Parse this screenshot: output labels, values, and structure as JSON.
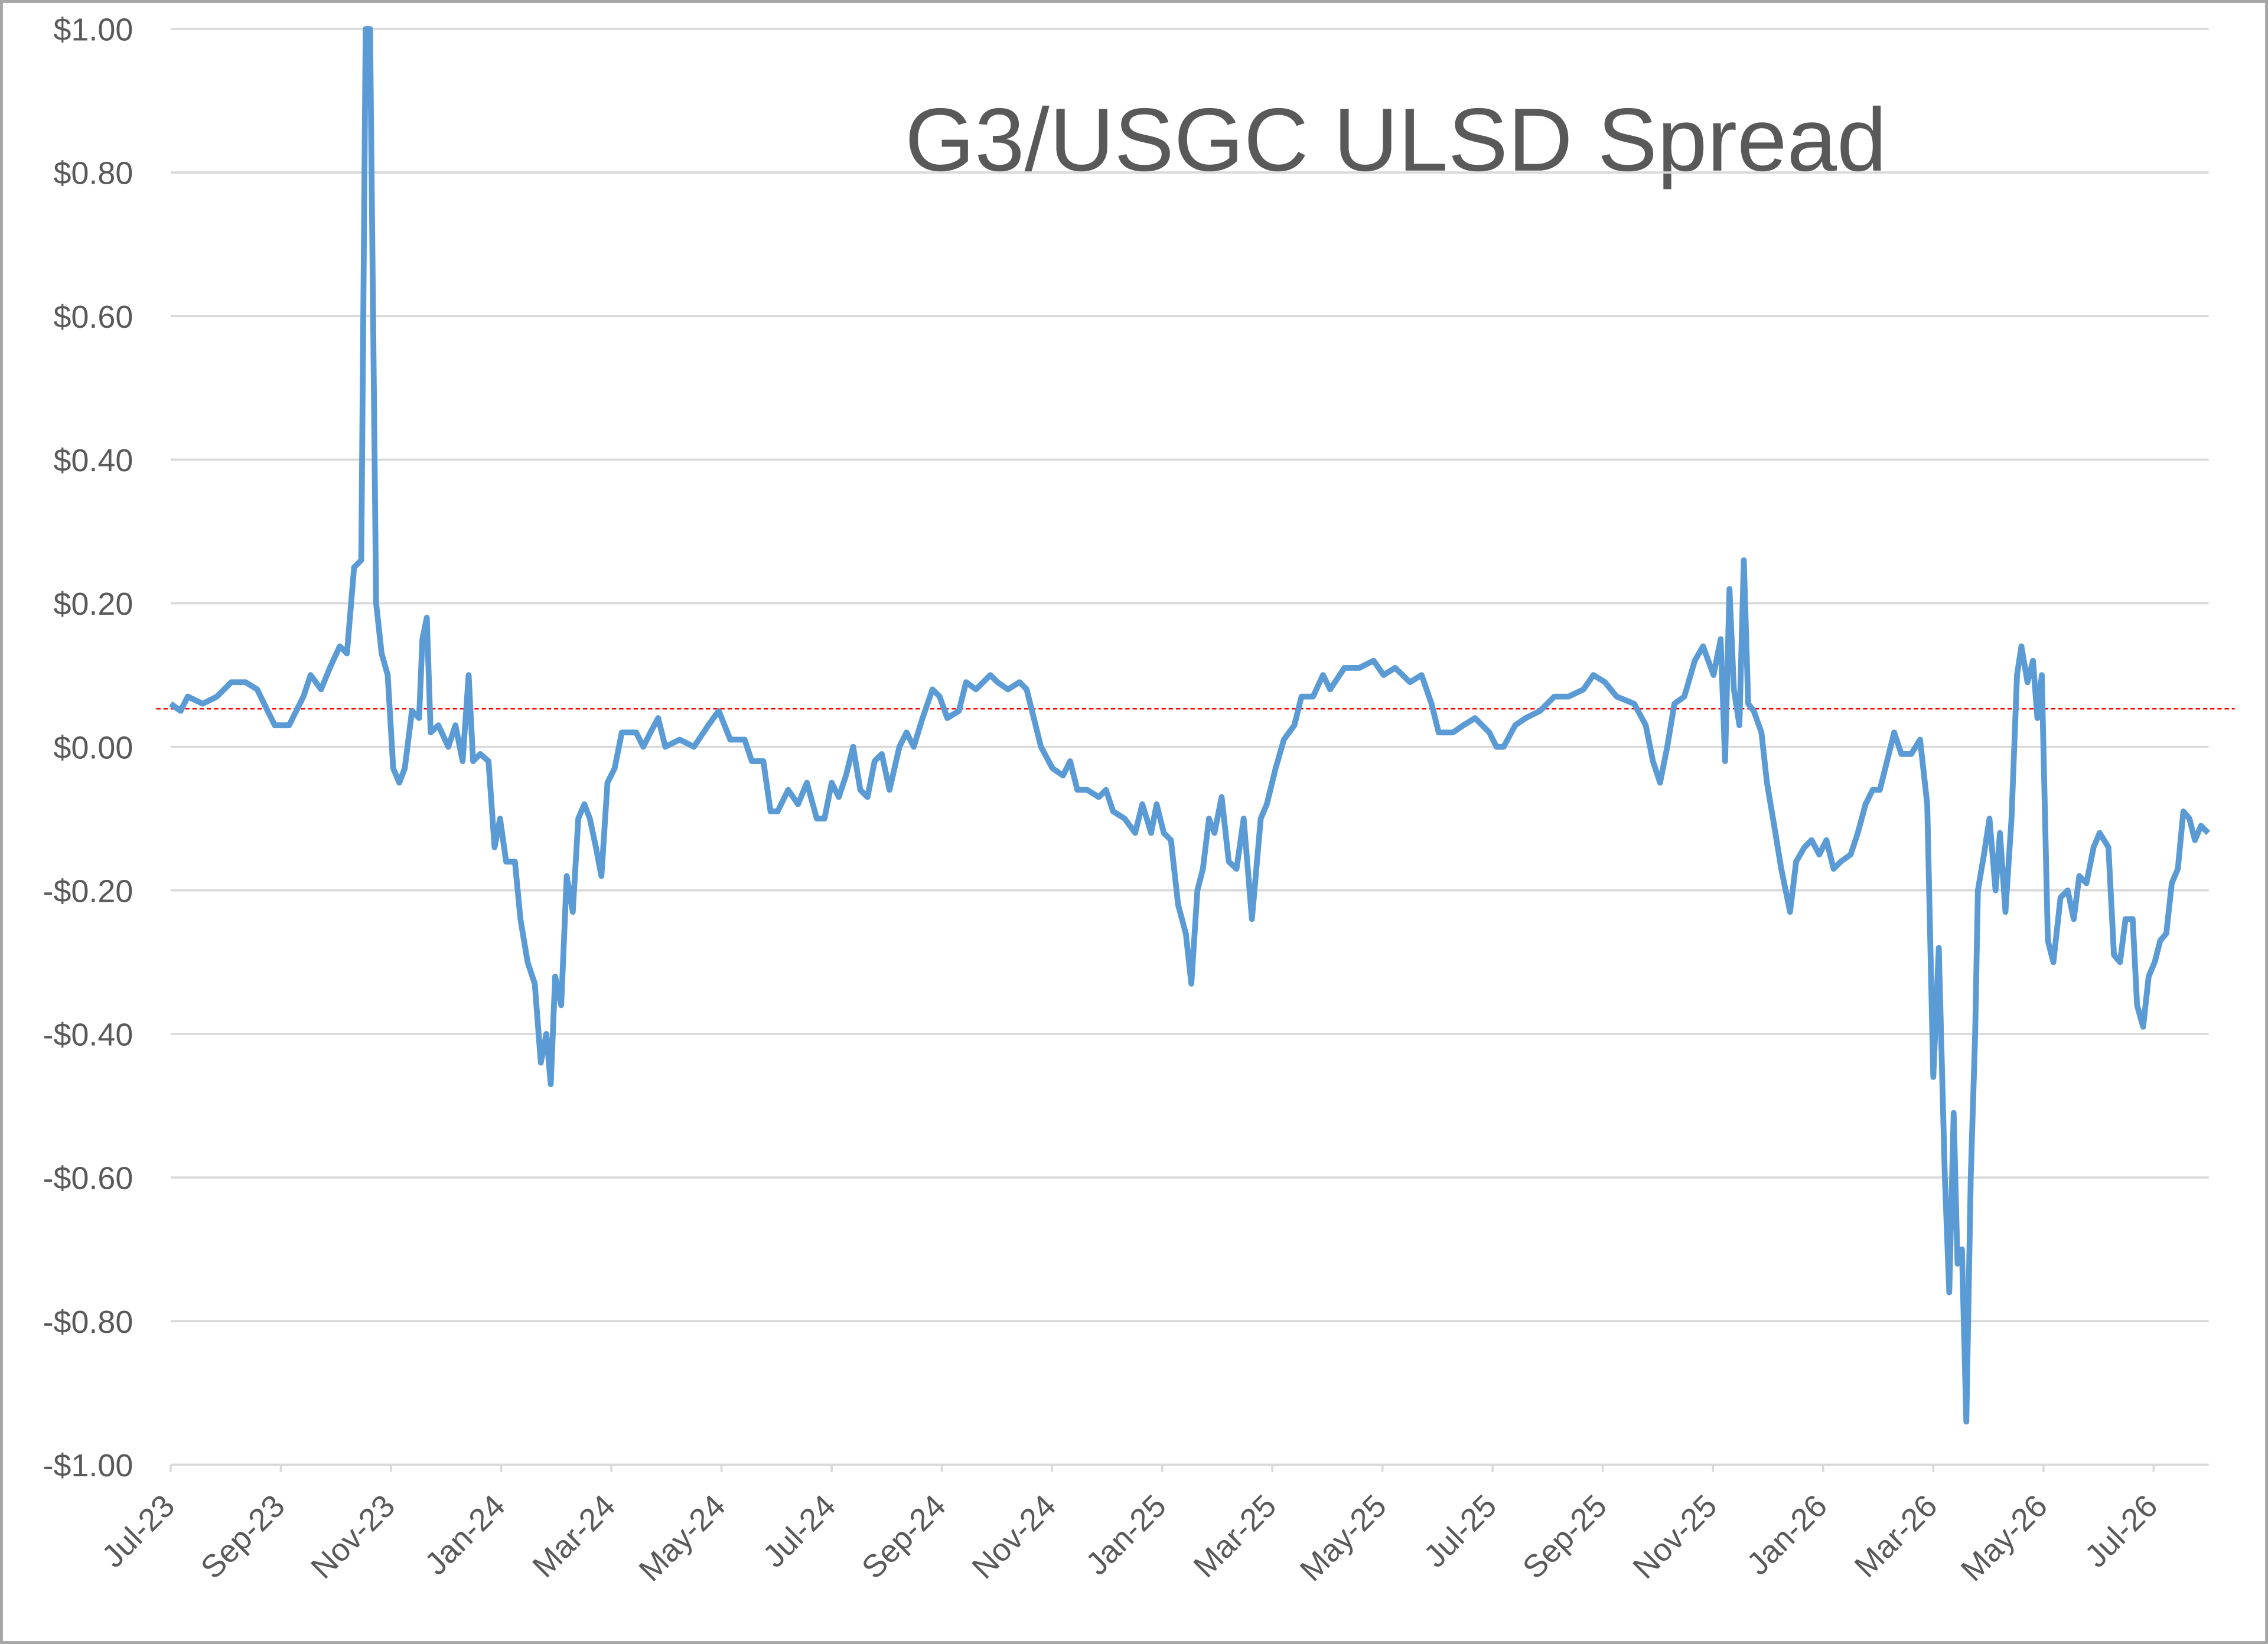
{
  "chart_data": {
    "type": "line",
    "title": "G3/USGC ULSD Spread",
    "color": "#5b9bd5",
    "x": [
      0,
      0.18,
      0.31,
      0.58,
      0.84,
      1.1,
      1.36,
      1.57,
      1.76,
      1.89,
      2.15,
      2.41,
      2.54,
      2.73,
      2.89,
      3.07,
      3.2,
      3.33,
      3.46,
      3.54,
      3.62,
      3.73,
      3.83,
      3.94,
      4.04,
      4.15,
      4.25,
      4.38,
      4.51,
      4.57,
      4.65,
      4.72,
      4.86,
      5.04,
      5.17,
      5.3,
      5.41,
      5.49,
      5.62,
      5.77,
      5.88,
      5.98,
      6.09,
      6.25,
      6.35,
      6.48,
      6.61,
      6.72,
      6.82,
      6.9,
      6.98,
      7.09,
      7.19,
      7.3,
      7.4,
      7.51,
      7.61,
      7.72,
      7.82,
      7.93,
      8.06,
      8.19,
      8.45,
      8.58,
      8.71,
      8.85,
      8.98,
      9.24,
      9.5,
      9.76,
      9.95,
      10.16,
      10.42,
      10.55,
      10.76,
      10.89,
      11.02,
      11.21,
      11.39,
      11.55,
      11.73,
      11.87,
      12.0,
      12.13,
      12.26,
      12.39,
      12.52,
      12.65,
      12.78,
      12.91,
      13.05,
      13.23,
      13.36,
      13.49,
      13.65,
      13.83,
      13.96,
      14.1,
      14.31,
      14.44,
      14.62,
      14.88,
      15.01,
      15.2,
      15.41,
      15.54,
      15.67,
      15.8,
      16.01,
      16.2,
      16.33,
      16.46,
      16.64,
      16.85,
      16.98,
      17.11,
      17.32,
      17.51,
      17.64,
      17.8,
      17.9,
      18.03,
      18.16,
      18.29,
      18.43,
      18.53,
      18.64,
      18.74,
      18.85,
      18.95,
      19.08,
      19.21,
      19.35,
      19.48,
      19.63,
      19.79,
      19.9,
      20.06,
      20.21,
      20.4,
      20.53,
      20.74,
      20.92,
      21.05,
      21.31,
      21.58,
      21.84,
      22.02,
      22.23,
      22.5,
      22.71,
      22.89,
      23.02,
      23.28,
      23.47,
      23.68,
      23.94,
      24.07,
      24.2,
      24.41,
      24.6,
      24.86,
      25.12,
      25.38,
      25.65,
      25.83,
      26.04,
      26.25,
      26.57,
      26.78,
      26.91,
      27.04,
      27.17,
      27.3,
      27.48,
      27.67,
      27.82,
      28.01,
      28.14,
      28.22,
      28.3,
      28.38,
      28.48,
      28.56,
      28.64,
      28.74,
      28.88,
      28.98,
      29.09,
      29.24,
      29.4,
      29.51,
      29.66,
      29.79,
      29.93,
      30.06,
      30.19,
      30.32,
      30.5,
      30.63,
      30.77,
      30.9,
      31.03,
      31.16,
      31.29,
      31.42,
      31.6,
      31.76,
      31.89,
      32.0,
      32.1,
      32.21,
      32.29,
      32.37,
      32.44,
      32.52,
      32.6,
      32.68,
      32.76,
      32.81,
      32.92,
      33.02,
      33.13,
      33.21,
      33.31,
      33.42,
      33.52,
      33.6,
      33.71,
      33.81,
      33.89,
      33.97,
      34.08,
      34.18,
      34.31,
      34.44,
      34.55,
      34.65,
      34.78,
      34.91,
      35.02,
      35.18,
      35.28,
      35.39,
      35.49,
      35.62,
      35.7,
      35.81,
      35.91,
      36.02,
      36.12,
      36.23,
      36.33,
      36.44,
      36.54,
      36.65,
      36.75,
      36.86,
      36.99
    ],
    "values": [
      0.06,
      0.05,
      0.07,
      0.06,
      0.07,
      0.09,
      0.09,
      0.08,
      0.05,
      0.03,
      0.03,
      0.07,
      0.1,
      0.08,
      0.11,
      0.14,
      0.13,
      0.25,
      0.26,
      1.0,
      1.0,
      0.2,
      0.13,
      0.1,
      -0.03,
      -0.05,
      -0.03,
      0.05,
      0.04,
      0.15,
      0.18,
      0.02,
      0.03,
      0.0,
      0.03,
      -0.02,
      0.1,
      -0.02,
      -0.01,
      -0.02,
      -0.14,
      -0.1,
      -0.16,
      -0.16,
      -0.24,
      -0.3,
      -0.33,
      -0.44,
      -0.4,
      -0.47,
      -0.32,
      -0.36,
      -0.18,
      -0.23,
      -0.1,
      -0.08,
      -0.1,
      -0.14,
      -0.18,
      -0.05,
      -0.03,
      0.02,
      0.02,
      0.0,
      0.02,
      0.04,
      0.0,
      0.01,
      0.0,
      0.03,
      0.05,
      0.01,
      0.01,
      -0.02,
      -0.02,
      -0.09,
      -0.09,
      -0.06,
      -0.08,
      -0.05,
      -0.1,
      -0.1,
      -0.05,
      -0.07,
      -0.04,
      0.0,
      -0.06,
      -0.07,
      -0.02,
      -0.01,
      -0.06,
      0.0,
      0.02,
      0.0,
      0.04,
      0.08,
      0.07,
      0.04,
      0.05,
      0.09,
      0.08,
      0.1,
      0.09,
      0.08,
      0.09,
      0.08,
      0.04,
      0.0,
      -0.03,
      -0.04,
      -0.02,
      -0.06,
      -0.06,
      -0.07,
      -0.06,
      -0.09,
      -0.1,
      -0.12,
      -0.08,
      -0.12,
      -0.08,
      -0.12,
      -0.13,
      -0.22,
      -0.26,
      -0.33,
      -0.2,
      -0.17,
      -0.1,
      -0.12,
      -0.07,
      -0.16,
      -0.17,
      -0.1,
      -0.24,
      -0.1,
      -0.08,
      -0.03,
      0.01,
      0.03,
      0.07,
      0.07,
      0.1,
      0.08,
      0.11,
      0.11,
      0.12,
      0.1,
      0.11,
      0.09,
      0.1,
      0.06,
      0.02,
      0.02,
      0.03,
      0.04,
      0.02,
      0.0,
      0.0,
      0.03,
      0.04,
      0.05,
      0.07,
      0.07,
      0.08,
      0.1,
      0.09,
      0.07,
      0.06,
      0.03,
      -0.02,
      -0.05,
      0.0,
      0.06,
      0.07,
      0.12,
      0.14,
      0.1,
      0.15,
      -0.02,
      0.22,
      0.08,
      0.03,
      0.26,
      0.06,
      0.05,
      0.02,
      -0.05,
      -0.1,
      -0.17,
      -0.23,
      -0.16,
      -0.14,
      -0.13,
      -0.15,
      -0.13,
      -0.17,
      -0.16,
      -0.15,
      -0.12,
      -0.08,
      -0.06,
      -0.06,
      -0.02,
      0.02,
      -0.01,
      -0.01,
      0.01,
      -0.08,
      -0.46,
      -0.28,
      -0.6,
      -0.76,
      -0.51,
      -0.72,
      -0.7,
      -0.94,
      -0.6,
      -0.4,
      -0.2,
      -0.15,
      -0.1,
      -0.2,
      -0.12,
      -0.23,
      -0.1,
      0.1,
      0.14,
      0.09,
      0.12,
      0.04,
      0.1,
      -0.27,
      -0.3,
      -0.21,
      -0.2,
      -0.24,
      -0.18,
      -0.19,
      -0.14,
      -0.12,
      -0.14,
      -0.29,
      -0.3,
      -0.24,
      -0.24,
      -0.36,
      -0.39,
      -0.32,
      -0.3,
      -0.27,
      -0.26,
      -0.19,
      -0.17,
      -0.09,
      -0.1,
      -0.13,
      -0.11,
      -0.12
    ],
    "xlim": [
      0,
      37
    ],
    "xticks": [
      {
        "value": 0,
        "label": "Jul-23"
      },
      {
        "value": 2,
        "label": "Sep-23"
      },
      {
        "value": 4,
        "label": "Nov-23"
      },
      {
        "value": 6,
        "label": "Jan-24"
      },
      {
        "value": 8,
        "label": "Mar-24"
      },
      {
        "value": 10,
        "label": "May-24"
      },
      {
        "value": 12,
        "label": "Jul-24"
      },
      {
        "value": 14,
        "label": "Sep-24"
      },
      {
        "value": 16,
        "label": "Nov-24"
      },
      {
        "value": 18,
        "label": "Jan-25"
      },
      {
        "value": 20,
        "label": "Mar-25"
      },
      {
        "value": 22,
        "label": "May-25"
      },
      {
        "value": 24,
        "label": "Jul-25"
      },
      {
        "value": 26,
        "label": "Sep-25"
      },
      {
        "value": 28,
        "label": "Nov-25"
      },
      {
        "value": 30,
        "label": "Jan-26"
      },
      {
        "value": 32,
        "label": "Mar-26"
      },
      {
        "value": 34,
        "label": "May-26"
      },
      {
        "value": 36,
        "label": "Jul-26"
      }
    ],
    "ylim": [
      -1,
      1
    ],
    "yticks": [
      {
        "value": 1,
        "label": "$1.00"
      },
      {
        "value": 0.8,
        "label": "$0.80"
      },
      {
        "value": 0.6,
        "label": "$0.60"
      },
      {
        "value": 0.4,
        "label": "$0.40"
      },
      {
        "value": 0.2,
        "label": "$0.20"
      },
      {
        "value": 0,
        "label": "$0.00"
      },
      {
        "value": -0.2,
        "label": "-$0.20"
      },
      {
        "value": -0.4,
        "label": "-$0.40"
      },
      {
        "value": -0.6,
        "label": "-$0.60"
      },
      {
        "value": -0.8,
        "label": "-$0.80"
      },
      {
        "value": -1,
        "label": "-$1.00"
      }
    ],
    "grid": true,
    "reference_line": {
      "value": 0.053,
      "color": "#ff0000"
    }
  }
}
